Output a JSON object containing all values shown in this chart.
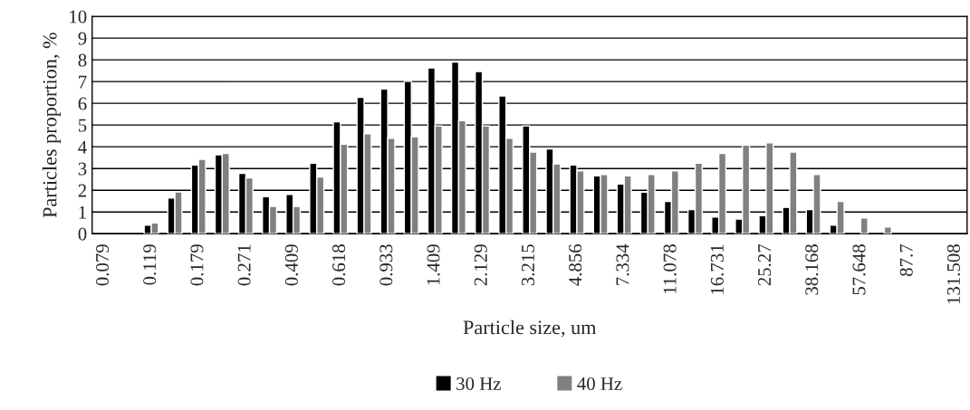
{
  "chart_data": {
    "type": "bar",
    "xlabel": "Particle size, um",
    "ylabel": "Particles proportion, %",
    "categories": [
      "0.079",
      null,
      "0.119",
      null,
      "0.179",
      null,
      "0.271",
      null,
      "0.409",
      null,
      "0.618",
      null,
      "0.933",
      null,
      "1.409",
      null,
      "2.129",
      null,
      "3.215",
      null,
      "4.856",
      null,
      "7.334",
      null,
      "11.078",
      null,
      "16.731",
      null,
      "25.27",
      null,
      "38.168",
      null,
      "57.648",
      null,
      "87.7",
      null,
      "131.508"
    ],
    "series": [
      {
        "name": "30 Hz",
        "color": "#000000",
        "values": [
          null,
          null,
          0.39,
          1.64,
          3.16,
          3.63,
          2.78,
          1.7,
          1.81,
          3.25,
          5.15,
          6.28,
          6.66,
          7.01,
          7.63,
          7.9,
          7.46,
          6.34,
          4.96,
          3.9,
          3.16,
          2.66,
          2.29,
          1.91,
          1.49,
          1.11,
          0.77,
          0.67,
          0.83,
          1.21,
          1.11,
          0.39,
          null,
          null,
          null,
          null,
          null
        ]
      },
      {
        "name": "40 Hz",
        "color": "#808080",
        "values": [
          null,
          null,
          0.5,
          1.92,
          3.42,
          3.69,
          2.57,
          1.26,
          1.26,
          2.61,
          4.12,
          4.6,
          4.39,
          4.46,
          4.96,
          5.2,
          4.96,
          4.39,
          3.76,
          3.21,
          2.89,
          2.72,
          2.66,
          2.72,
          2.89,
          3.25,
          3.69,
          4.08,
          4.18,
          3.76,
          2.72,
          1.49,
          0.73,
          0.31,
          null,
          null,
          null
        ]
      }
    ],
    "ylim": [
      0,
      10
    ],
    "yticks": [
      0,
      1,
      2,
      3,
      4,
      5,
      6,
      7,
      8,
      9,
      10
    ],
    "grid": "y",
    "legend": "bottom"
  }
}
